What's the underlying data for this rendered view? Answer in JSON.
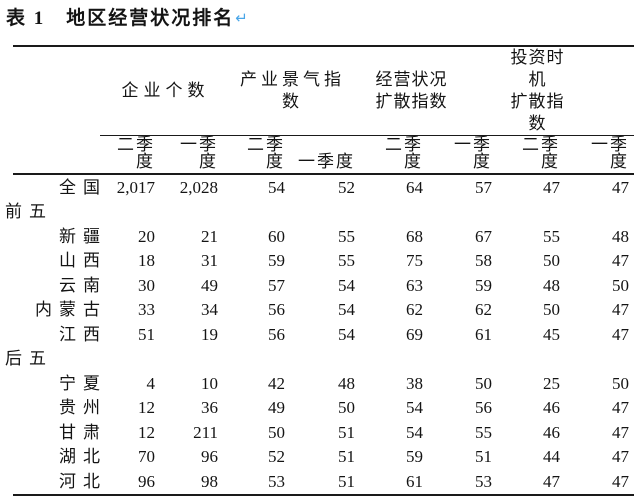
{
  "title": {
    "text": "表 1　地区经营状况排名",
    "paragraph_mark": "↵"
  },
  "colors": {
    "paragraph_mark_blue": "#4aa6e8",
    "text": "#141414",
    "rule": "#1a1a1a"
  },
  "table": {
    "groups": [
      {
        "lines": [
          "企业个数"
        ]
      },
      {
        "lines": [
          "产业景气指数"
        ]
      },
      {
        "lines": [
          "经营状况",
          "扩散指数"
        ]
      },
      {
        "lines": [
          "投资时机",
          "扩散指数"
        ]
      }
    ],
    "subheaders": [
      "二季度",
      "一季度",
      "二季度",
      "一季度",
      "二季度",
      "一季度",
      "二季度",
      "一季度"
    ],
    "rows": [
      {
        "type": "data",
        "label": "全国",
        "values": [
          "2,017",
          "2,028",
          "54",
          "52",
          "64",
          "57",
          "47",
          "47"
        ]
      },
      {
        "type": "section",
        "label": "前五"
      },
      {
        "type": "data",
        "label": "新疆",
        "values": [
          "20",
          "21",
          "60",
          "55",
          "68",
          "67",
          "55",
          "48"
        ]
      },
      {
        "type": "data",
        "label": "山西",
        "values": [
          "18",
          "31",
          "59",
          "55",
          "75",
          "58",
          "50",
          "47"
        ]
      },
      {
        "type": "data",
        "label": "云南",
        "values": [
          "30",
          "49",
          "57",
          "54",
          "63",
          "59",
          "48",
          "50"
        ]
      },
      {
        "type": "data",
        "label": "内蒙古",
        "values": [
          "33",
          "34",
          "56",
          "54",
          "62",
          "62",
          "50",
          "47"
        ]
      },
      {
        "type": "data",
        "label": "江西",
        "values": [
          "51",
          "19",
          "56",
          "54",
          "69",
          "61",
          "45",
          "47"
        ]
      },
      {
        "type": "section",
        "label": "后五"
      },
      {
        "type": "data",
        "label": "宁夏",
        "values": [
          "4",
          "10",
          "42",
          "48",
          "38",
          "50",
          "25",
          "50"
        ]
      },
      {
        "type": "data",
        "label": "贵州",
        "values": [
          "12",
          "36",
          "49",
          "50",
          "54",
          "56",
          "46",
          "47"
        ]
      },
      {
        "type": "data",
        "label": "甘肃",
        "values": [
          "12",
          "211",
          "50",
          "51",
          "54",
          "55",
          "46",
          "47"
        ]
      },
      {
        "type": "data",
        "label": "湖北",
        "values": [
          "70",
          "96",
          "52",
          "51",
          "59",
          "51",
          "44",
          "47"
        ]
      },
      {
        "type": "data",
        "label": "河北",
        "values": [
          "96",
          "98",
          "53",
          "51",
          "61",
          "53",
          "47",
          "47"
        ]
      }
    ]
  }
}
